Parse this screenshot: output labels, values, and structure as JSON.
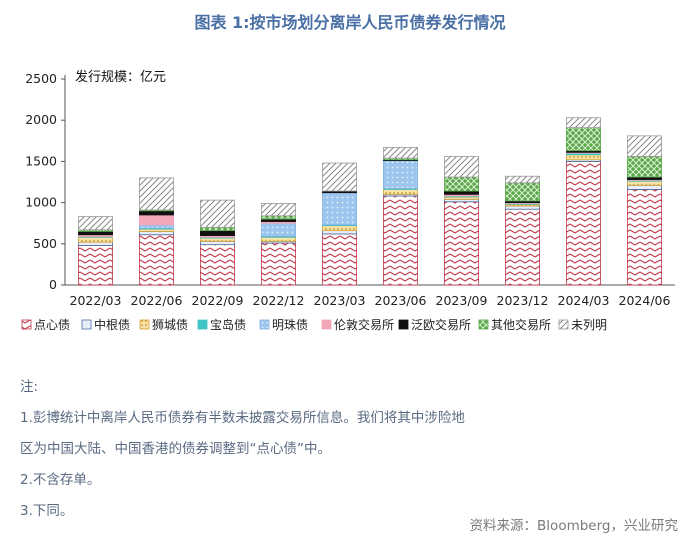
{
  "title": "图表 1:按市场划分离岸人民币债券发行情况",
  "chart_data": {
    "type": "bar",
    "stacked": true,
    "annotation": "发行规模：亿元",
    "categories": [
      "2022/03",
      "2022/06",
      "2022/09",
      "2022/12",
      "2023/03",
      "2023/06",
      "2023/09",
      "2023/12",
      "2024/03",
      "2024/06"
    ],
    "ylim": [
      0,
      2500
    ],
    "yticks": [
      0,
      500,
      1000,
      1500,
      2000,
      2500
    ],
    "grid": false,
    "legend_position": "bottom",
    "series": [
      {
        "name": "点心债",
        "color": "#c0364a",
        "pattern": "zigzag",
        "values": [
          480,
          610,
          490,
          510,
          620,
          1080,
          1010,
          920,
          1500,
          1160
        ]
      },
      {
        "name": "中根债",
        "color": "#4a6fa5",
        "pattern": "solid-light",
        "values": [
          40,
          40,
          40,
          20,
          40,
          20,
          30,
          40,
          20,
          50
        ]
      },
      {
        "name": "狮城债",
        "color": "#d9a33a",
        "pattern": "dots",
        "values": [
          60,
          30,
          40,
          50,
          60,
          60,
          30,
          20,
          60,
          50
        ]
      },
      {
        "name": "宝岛债",
        "color": "#3fc4c4",
        "pattern": "solid",
        "values": [
          10,
          10,
          10,
          10,
          10,
          10,
          10,
          10,
          20,
          10
        ]
      },
      {
        "name": "明珠债",
        "color": "#7fb2e0",
        "pattern": "dots",
        "values": [
          0,
          40,
          0,
          160,
          390,
          340,
          0,
          0,
          0,
          0
        ]
      },
      {
        "name": "伦敦交易所",
        "color": "#f2a7b8",
        "pattern": "solid",
        "values": [
          20,
          120,
          20,
          20,
          0,
          0,
          20,
          10,
          10,
          10
        ]
      },
      {
        "name": "泛欧交易所",
        "color": "#111111",
        "pattern": "solid",
        "values": [
          40,
          50,
          60,
          30,
          20,
          10,
          40,
          20,
          20,
          30
        ]
      },
      {
        "name": "其他交易所",
        "color": "#5aa84a",
        "pattern": "grid",
        "values": [
          20,
          10,
          40,
          40,
          0,
          20,
          170,
          220,
          280,
          250
        ]
      },
      {
        "name": "未列明",
        "color": "#999999",
        "pattern": "hatch",
        "values": [
          160,
          390,
          330,
          150,
          340,
          130,
          250,
          80,
          120,
          250
        ]
      }
    ]
  },
  "notes": {
    "heading": "注:",
    "items": [
      "1.彭博统计中离岸人民币债券有半数未披露交易所信息。我们将其中涉险地",
      "区为中国大陆、中国香港的债券调整到“点心债”中。",
      "2.不含存单。",
      "3.下同。"
    ]
  },
  "source": "资料来源：Bloomberg，兴业研究"
}
